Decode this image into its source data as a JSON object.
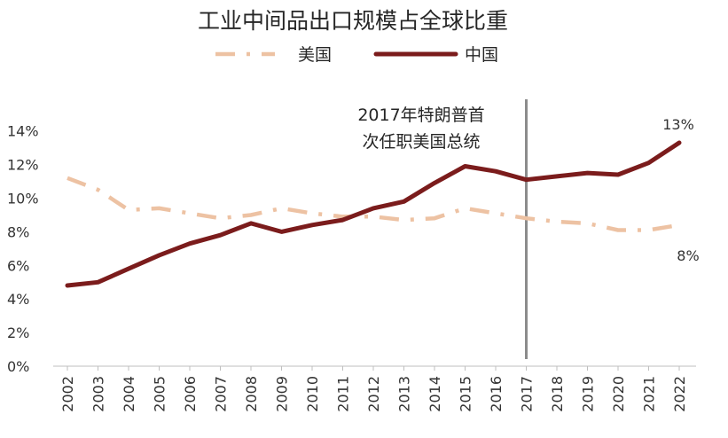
{
  "chart_data": {
    "type": "line",
    "title": "工业中间品出口规模占全球比重",
    "categories": [
      "2002",
      "2003",
      "2004",
      "2005",
      "2006",
      "2007",
      "2008",
      "2009",
      "2010",
      "2011",
      "2012",
      "2013",
      "2014",
      "2015",
      "2016",
      "2017",
      "2018",
      "2019",
      "2020",
      "2021",
      "2022"
    ],
    "series": [
      {
        "name": "美国",
        "color": "#EDC2A3",
        "style": "dash-dot",
        "values": [
          11.2,
          10.5,
          9.3,
          9.4,
          9.1,
          8.8,
          9.0,
          9.4,
          9.1,
          8.9,
          8.9,
          8.7,
          8.8,
          9.4,
          9.1,
          8.8,
          8.6,
          8.5,
          8.1,
          8.1,
          8.4
        ]
      },
      {
        "name": "中国",
        "color": "#7B1C1C",
        "style": "solid",
        "values": [
          4.8,
          5.0,
          5.8,
          6.6,
          7.3,
          7.8,
          8.5,
          8.0,
          8.4,
          8.7,
          9.4,
          9.8,
          10.9,
          11.9,
          11.6,
          11.1,
          11.3,
          11.5,
          11.4,
          12.1,
          13.3
        ]
      }
    ],
    "y_ticks": [
      "0%",
      "2%",
      "4%",
      "6%",
      "8%",
      "10%",
      "12%",
      "14%"
    ],
    "ylim": [
      0,
      14
    ],
    "legend_position": "top-center",
    "grid": false,
    "annotation": {
      "category": "2017",
      "line1": "2017年特朗普首",
      "line2": "次任职美国总统",
      "line_color": "#8C8C8C"
    },
    "end_labels": {
      "china": "13%",
      "usa": "8%"
    }
  }
}
